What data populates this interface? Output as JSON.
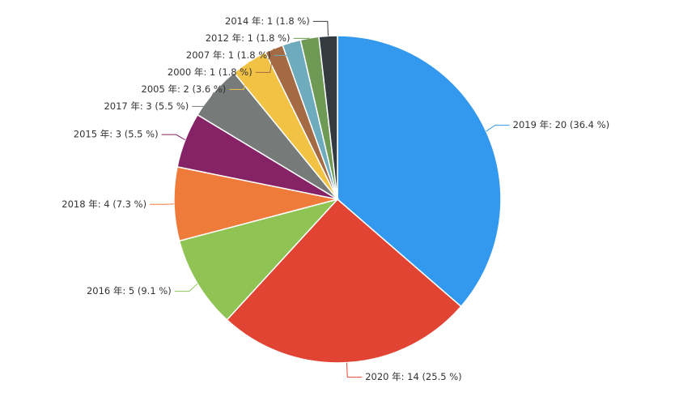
{
  "chart_data": {
    "type": "pie",
    "values": [
      20,
      14,
      5,
      4,
      3,
      3,
      2,
      1,
      1,
      1,
      1
    ],
    "value_labels": [
      "2019 年: 20 (36.4 %)",
      "2020 年: 14 (25.5 %)",
      "2016 年: 5 (9.1 %)",
      "2018 年: 4 (7.3 %)",
      "2015 年: 3 (5.5 %)",
      "2017 年: 3 (5.5 %)",
      "2005 年: 2 (3.6 %)",
      "2000 年: 1 (1.8 %)",
      "2007 年: 1 (1.8 %)",
      "2012 年: 1 (1.8 %)",
      "2014 年: 1 (1.8 %)"
    ],
    "colors": [
      "#3399ee",
      "#e24434",
      "#8fc455",
      "#ef7b3a",
      "#862366",
      "#767b7a",
      "#f2c244",
      "#a46a44",
      "#6eabbd",
      "#6e9a56",
      "#333a40"
    ]
  }
}
